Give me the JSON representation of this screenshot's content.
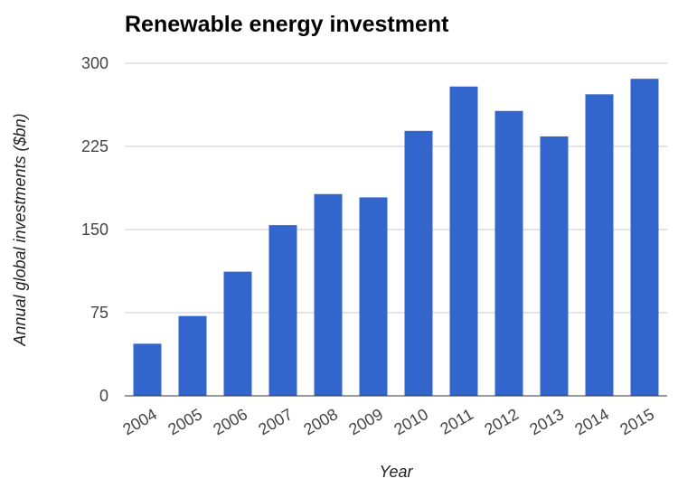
{
  "chart_data": {
    "type": "bar",
    "title": "Renewable energy investment",
    "xlabel": "Year",
    "ylabel": "Annual global investments ($bn)",
    "categories": [
      "2004",
      "2005",
      "2006",
      "2007",
      "2008",
      "2009",
      "2010",
      "2011",
      "2012",
      "2013",
      "2014",
      "2015"
    ],
    "values": [
      47,
      72,
      112,
      154,
      182,
      179,
      239,
      279,
      257,
      234,
      272,
      286
    ],
    "ylim": [
      0,
      300
    ],
    "yticks": [
      "0",
      "75",
      "150",
      "225",
      "300"
    ],
    "grid": true,
    "legend": "none",
    "bar_color": "#3366cc"
  }
}
